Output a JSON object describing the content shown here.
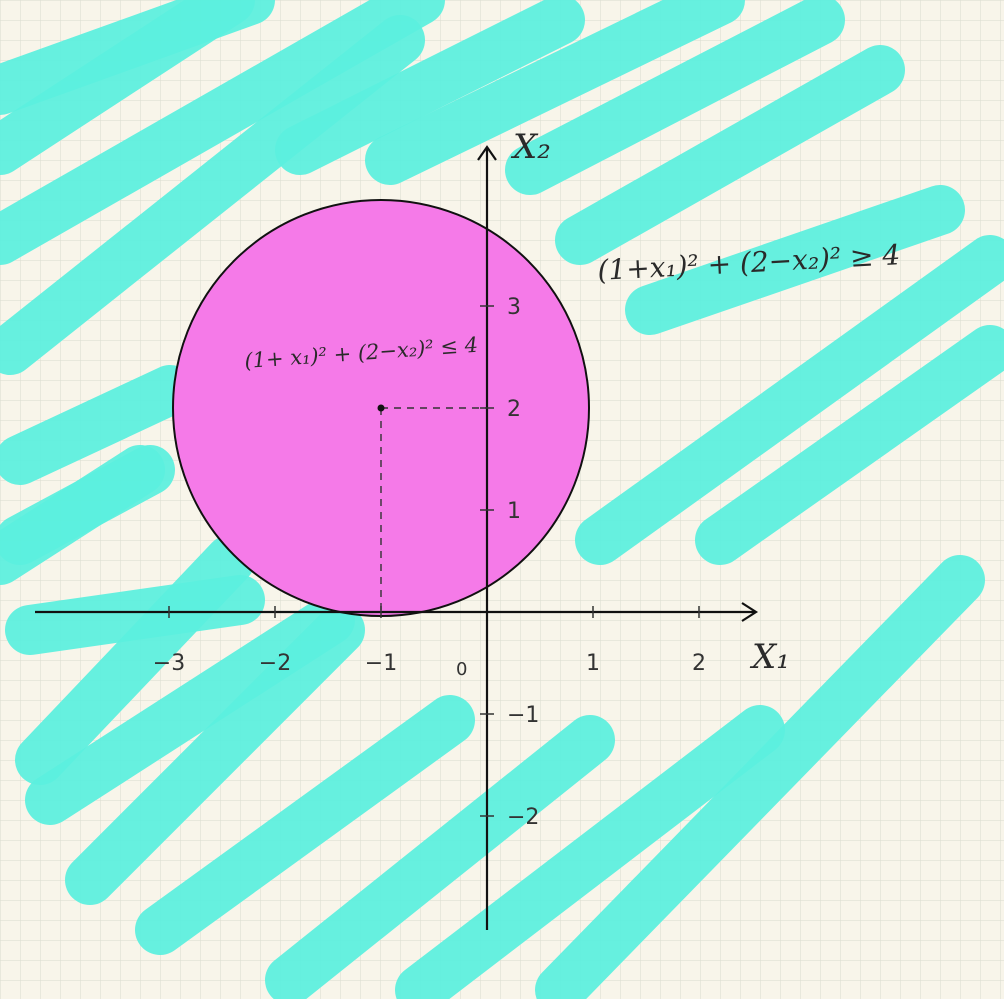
{
  "colors": {
    "background": "#f8f5ea",
    "grid": "#d9dccf",
    "hatch": "#5cf0df",
    "disk_fill": "#f57ae8",
    "ink": "#1a1a1a"
  },
  "axes": {
    "x_label": "X₁",
    "y_label": "X₂",
    "origin_label": "0",
    "x_ticks": [
      {
        "value": -3,
        "label": "−3"
      },
      {
        "value": -2,
        "label": "−2"
      },
      {
        "value": -1,
        "label": "−1"
      },
      {
        "value": 1,
        "label": "1"
      },
      {
        "value": 2,
        "label": "2"
      }
    ],
    "y_ticks": [
      {
        "value": 3,
        "label": "3"
      },
      {
        "value": 2,
        "label": "2"
      },
      {
        "value": 1,
        "label": "1"
      },
      {
        "value": -1,
        "label": "−1"
      },
      {
        "value": -2,
        "label": "−2"
      }
    ]
  },
  "disk": {
    "center": [
      -1,
      2
    ],
    "radius": 2
  },
  "labels": {
    "inside": "(1+ x₁)² + (2−x₂)² ≤ 4",
    "outside": "(1+x₁)² + (2−x₂)² ≥ 4"
  }
}
